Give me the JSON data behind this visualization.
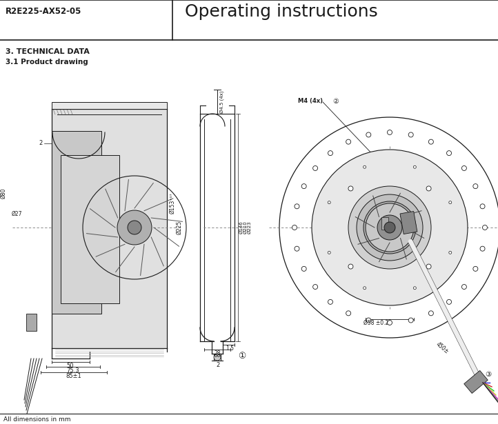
{
  "title_left": "R2E225-AX52-05",
  "title_right": "Operating instructions",
  "section_title": "3. TECHNICAL DATA",
  "subsection_title": "3.1 Product drawing",
  "footer_text": "All dimensions in mm",
  "bg_color": "#ffffff",
  "line_color": "#1a1a1a",
  "gray_light": "#cccccc",
  "gray_mid": "#aaaaaa",
  "gray_dark": "#888888"
}
